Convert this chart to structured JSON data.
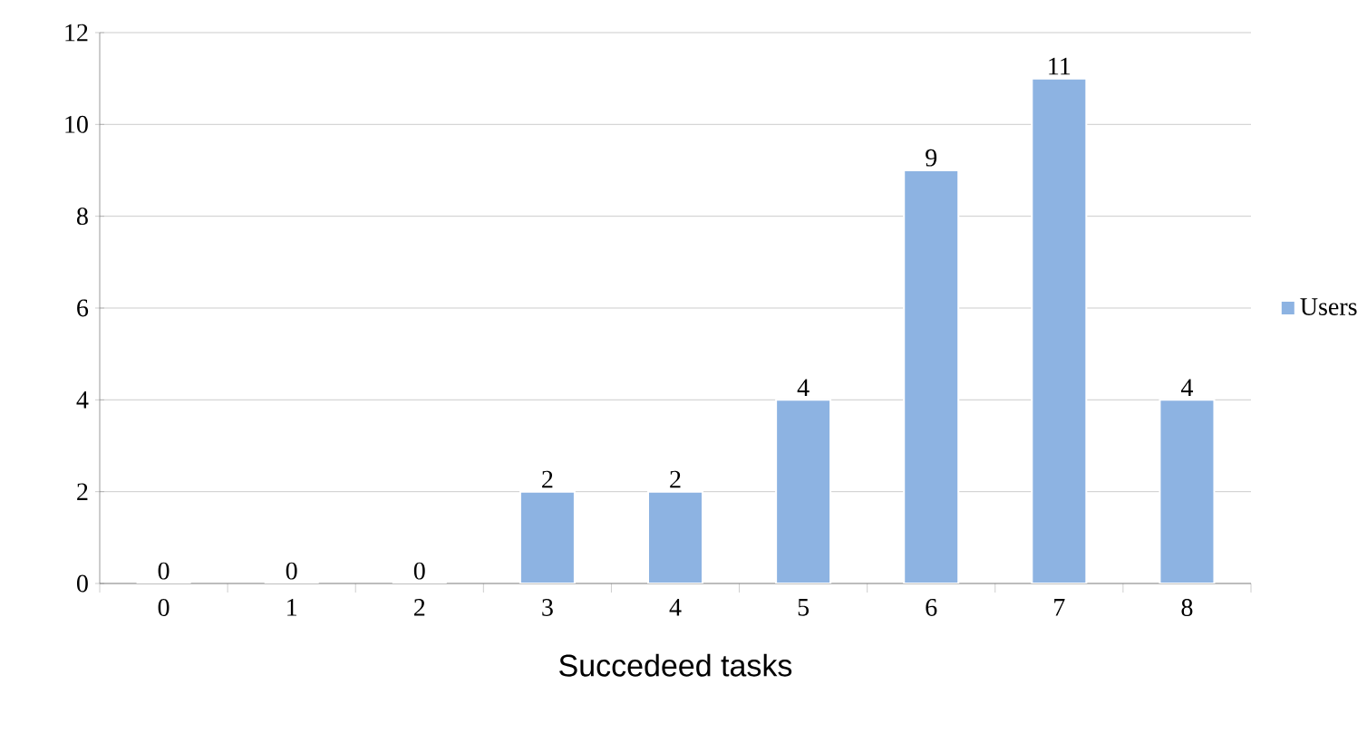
{
  "chart_data": {
    "type": "bar",
    "xlabel": "Succedeed tasks",
    "categories": [
      "0",
      "1",
      "2",
      "3",
      "4",
      "5",
      "6",
      "7",
      "8"
    ],
    "series": [
      {
        "name": "Users",
        "color": "#8db3e2",
        "values": [
          0,
          0,
          0,
          2,
          2,
          4,
          9,
          11,
          4
        ]
      }
    ],
    "ylim": [
      0,
      12
    ],
    "yticks": [
      0,
      2,
      4,
      6,
      8,
      10,
      12
    ],
    "grid": "y",
    "legend": "right",
    "data_labels": true
  }
}
